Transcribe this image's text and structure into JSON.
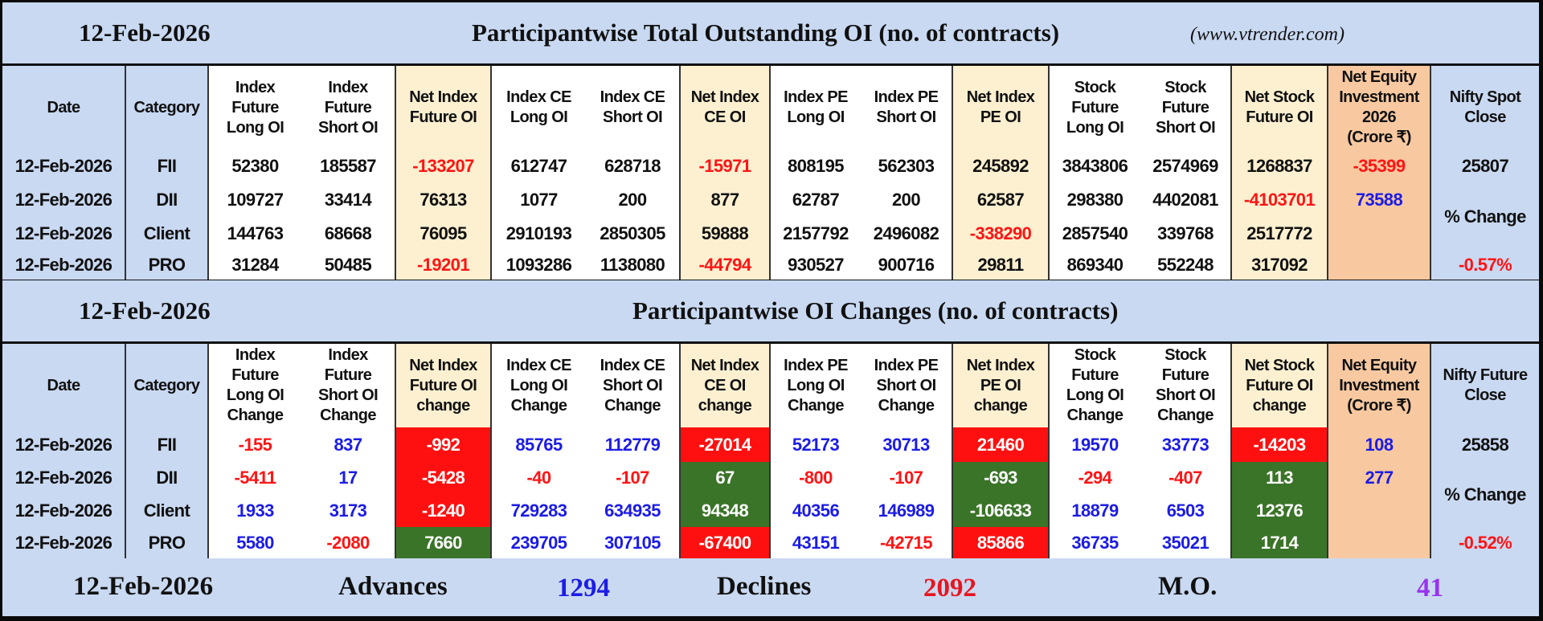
{
  "header1": {
    "date": "12-Feb-2026",
    "title": "Participantwise Total Outstanding OI (no. of contracts)",
    "site": "(www.vtrender.com)"
  },
  "header2": {
    "date": "12-Feb-2026",
    "title": "Participantwise OI Changes (no. of contracts)"
  },
  "colors": {
    "header_bg": "#c9d9f2",
    "net_bg": "#fdf0d0",
    "equity_bg": "#f8c9a0",
    "negative": "#ff1414",
    "positive": "#1c1ce6",
    "fill_red": "#ff1010",
    "fill_green": "#3a7428",
    "mo": "#9933ee"
  },
  "table1": {
    "headers": [
      "Date",
      "Category",
      "Index\nFuture\nLong OI",
      "Index\nFuture\nShort OI",
      "Net Index\nFuture OI",
      "Index CE\nLong OI",
      "Index CE\nShort OI",
      "Net Index\nCE OI",
      "Index PE\nLong OI",
      "Index PE\nShort OI",
      "Net Index\nPE OI",
      "Stock\nFuture\nLong OI",
      "Stock\nFuture\nShort OI",
      "Net Stock\nFuture OI",
      "Net Equity\nInvestment\n2026\n(Crore ₹)",
      "Nifty Spot\nClose"
    ],
    "rows": [
      {
        "date": "12-Feb-2026",
        "category": "FII",
        "values": [
          "52380",
          "185587",
          "-133207",
          "612747",
          "628718",
          "-15971",
          "808195",
          "562303",
          "245892",
          "3843806",
          "2574969",
          "1268837",
          "-35399"
        ],
        "styles": [
          "k",
          "k",
          "r",
          "k",
          "k",
          "r",
          "k",
          "k",
          "k",
          "k",
          "k",
          "k",
          "r"
        ]
      },
      {
        "date": "12-Feb-2026",
        "category": "DII",
        "values": [
          "109727",
          "33414",
          "76313",
          "1077",
          "200",
          "877",
          "62787",
          "200",
          "62587",
          "298380",
          "4402081",
          "-4103701",
          "73588"
        ],
        "styles": [
          "k",
          "k",
          "k",
          "k",
          "k",
          "k",
          "k",
          "k",
          "k",
          "k",
          "k",
          "r",
          "b"
        ]
      },
      {
        "date": "12-Feb-2026",
        "category": "Client",
        "values": [
          "144763",
          "68668",
          "76095",
          "2910193",
          "2850305",
          "59888",
          "2157792",
          "2496082",
          "-338290",
          "2857540",
          "339768",
          "2517772",
          ""
        ],
        "styles": [
          "k",
          "k",
          "k",
          "k",
          "k",
          "k",
          "k",
          "k",
          "r",
          "k",
          "k",
          "k",
          "k"
        ]
      },
      {
        "date": "12-Feb-2026",
        "category": "PRO",
        "values": [
          "31284",
          "50485",
          "-19201",
          "1093286",
          "1138080",
          "-44794",
          "930527",
          "900716",
          "29811",
          "869340",
          "552248",
          "317092",
          ""
        ],
        "styles": [
          "k",
          "k",
          "r",
          "k",
          "k",
          "r",
          "k",
          "k",
          "k",
          "k",
          "k",
          "k",
          "k"
        ]
      }
    ],
    "nifty": {
      "close": "25807",
      "change_label": "% Change",
      "change": "-0.57%"
    }
  },
  "table2": {
    "headers": [
      "Date",
      "Category",
      "Index\nFuture\nLong OI\nChange",
      "Index\nFuture\nShort OI\nChange",
      "Net Index\nFuture OI\nchange",
      "Index CE\nLong OI\nChange",
      "Index CE\nShort OI\nChange",
      "Net Index\nCE OI\nchange",
      "Index PE\nLong OI\nChange",
      "Index PE\nShort OI\nChange",
      "Net Index\nPE OI\nchange",
      "Stock\nFuture\nLong OI\nChange",
      "Stock\nFuture\nShort OI\nChange",
      "Net Stock\nFuture OI\nchange",
      "Net Equity\nInvestment\n(Crore ₹)",
      "Nifty Future\nClose"
    ],
    "rows": [
      {
        "date": "12-Feb-2026",
        "category": "FII",
        "values": [
          "-155",
          "837",
          "-992",
          "85765",
          "112779",
          "-27014",
          "52173",
          "30713",
          "21460",
          "19570",
          "33773",
          "-14203",
          "108"
        ],
        "styles": [
          "r",
          "b",
          "R",
          "b",
          "b",
          "R",
          "b",
          "b",
          "R",
          "b",
          "b",
          "R",
          "b"
        ]
      },
      {
        "date": "12-Feb-2026",
        "category": "DII",
        "values": [
          "-5411",
          "17",
          "-5428",
          "-40",
          "-107",
          "67",
          "-800",
          "-107",
          "-693",
          "-294",
          "-407",
          "113",
          "277"
        ],
        "styles": [
          "r",
          "b",
          "R",
          "r",
          "r",
          "G",
          "r",
          "r",
          "G",
          "r",
          "r",
          "G",
          "b"
        ]
      },
      {
        "date": "12-Feb-2026",
        "category": "Client",
        "values": [
          "1933",
          "3173",
          "-1240",
          "729283",
          "634935",
          "94348",
          "40356",
          "146989",
          "-106633",
          "18879",
          "6503",
          "12376",
          ""
        ],
        "styles": [
          "b",
          "b",
          "R",
          "b",
          "b",
          "G",
          "b",
          "b",
          "G",
          "b",
          "b",
          "G",
          "k"
        ]
      },
      {
        "date": "12-Feb-2026",
        "category": "PRO",
        "values": [
          "5580",
          "-2080",
          "7660",
          "239705",
          "307105",
          "-67400",
          "43151",
          "-42715",
          "85866",
          "36735",
          "35021",
          "1714",
          ""
        ],
        "styles": [
          "b",
          "r",
          "G",
          "b",
          "b",
          "R",
          "b",
          "r",
          "R",
          "b",
          "b",
          "G",
          "k"
        ]
      }
    ],
    "nifty": {
      "close": "25858",
      "change_label": "% Change",
      "change": "-0.52%"
    }
  },
  "footer": {
    "date": "12-Feb-2026",
    "advances_label": "Advances",
    "advances": "1294",
    "declines_label": "Declines",
    "declines": "2092",
    "mo_label": "M.O.",
    "mo": "41"
  }
}
